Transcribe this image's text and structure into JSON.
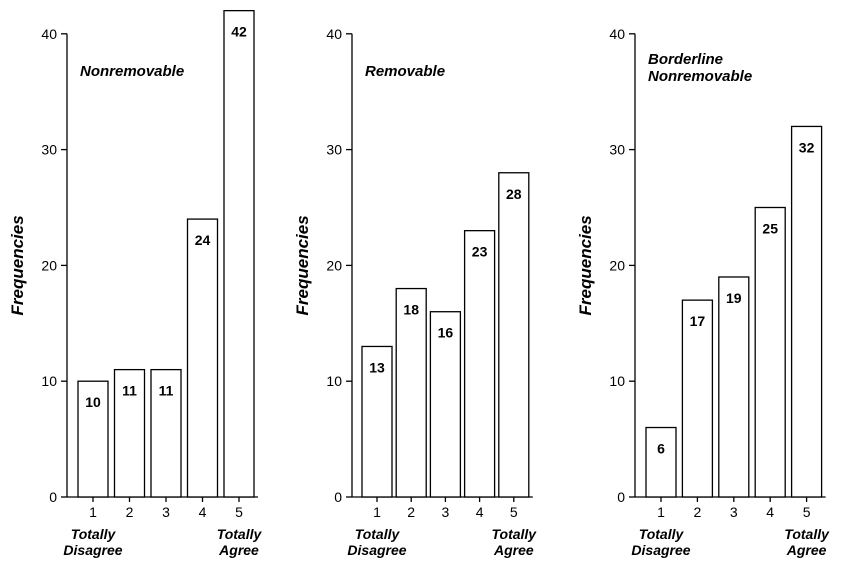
{
  "chart_data": [
    {
      "type": "bar",
      "title": "Nonremovable",
      "categories": [
        "1",
        "2",
        "3",
        "4",
        "5"
      ],
      "values": [
        10,
        11,
        11,
        24,
        42
      ],
      "xlabel": "",
      "ylabel": "Frequencies",
      "ylim": [
        0,
        40
      ],
      "yticks": [
        0,
        10,
        20,
        30,
        40
      ],
      "anchors": {
        "low": "Totally Disagree",
        "high": "Totally Agree"
      },
      "grid": false
    },
    {
      "type": "bar",
      "title": "Removable",
      "categories": [
        "1",
        "2",
        "3",
        "4",
        "5"
      ],
      "values": [
        13,
        18,
        16,
        23,
        28
      ],
      "xlabel": "",
      "ylabel": "Frequencies",
      "ylim": [
        0,
        40
      ],
      "yticks": [
        0,
        10,
        20,
        30,
        40
      ],
      "anchors": {
        "low": "Totally Disagree",
        "high": "Totally Agree"
      },
      "grid": false
    },
    {
      "type": "bar",
      "title": "Borderline Nonremovable",
      "categories": [
        "1",
        "2",
        "3",
        "4",
        "5"
      ],
      "values": [
        6,
        17,
        19,
        25,
        32
      ],
      "xlabel": "",
      "ylabel": "Frequencies",
      "ylim": [
        0,
        40
      ],
      "yticks": [
        0,
        10,
        20,
        30,
        40
      ],
      "anchors": {
        "low": "Totally Disagree",
        "high": "Totally Agree"
      },
      "grid": false
    }
  ]
}
